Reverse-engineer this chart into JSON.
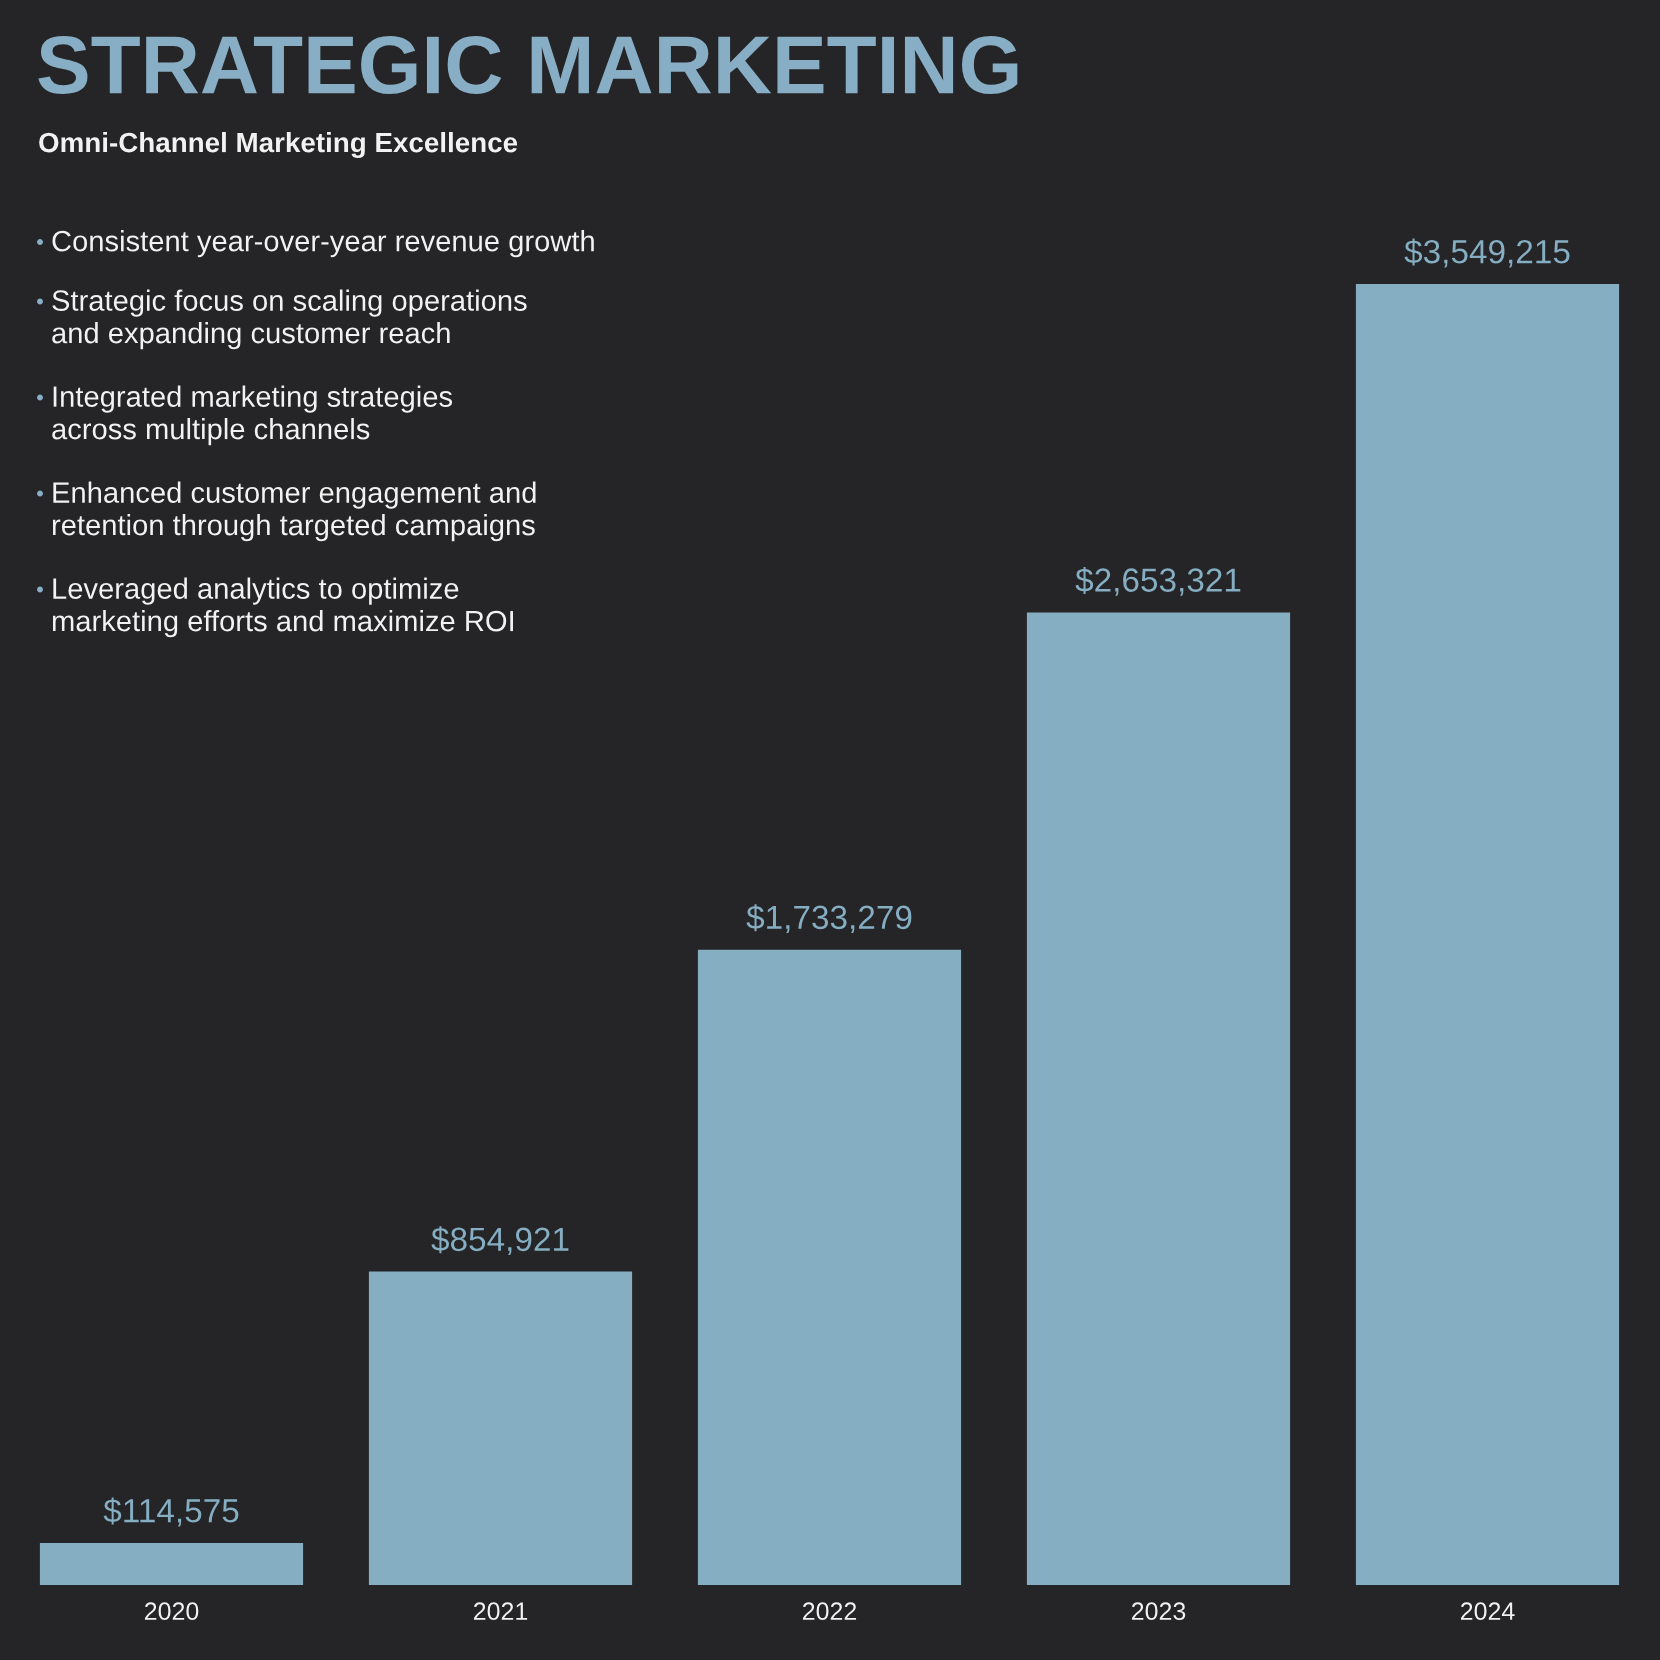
{
  "chart_data": {
    "type": "bar",
    "title": "STRATEGIC MARKETING",
    "subtitle": "Omni-Channel Marketing Excellence",
    "categories": [
      "2020",
      "2021",
      "2022",
      "2023",
      "2024"
    ],
    "values": [
      114575,
      854921,
      1733279,
      2653321,
      3549215
    ],
    "value_labels": [
      "$114,575",
      "$854,921",
      "$1,733,279",
      "$2,653,321",
      "$3,549,215"
    ],
    "color": "#85aec3",
    "tick_labels": "x",
    "annotations": [
      "Consistent year-over-year revenue growth",
      "Strategic focus on scaling operations\nand expanding customer reach",
      "Integrated marketing strategies\nacross multiple channels",
      "Enhanced customer engagement and\nretention through targeted campaigns",
      "Leveraged analytics to optimize\nmarketing efforts and maximize ROI"
    ]
  }
}
